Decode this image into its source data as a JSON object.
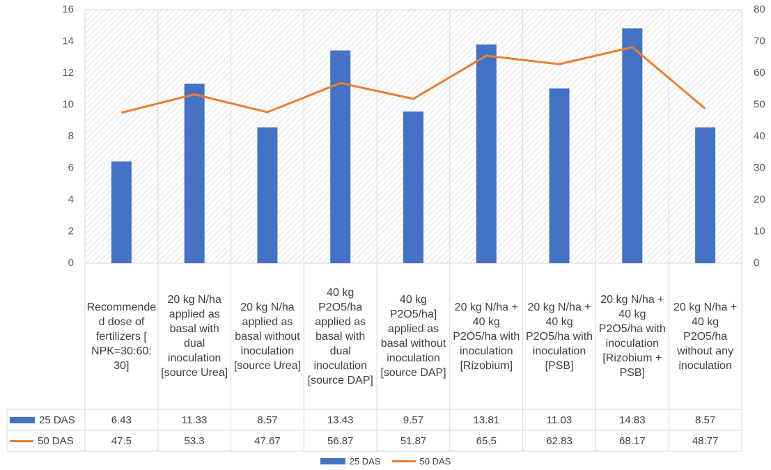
{
  "chart_data": {
    "type": "bar_line",
    "categories": [
      "Recommended dose of fertilizers [ NPK=30:60: 30]",
      "20 kg N/ha applied as basal with dual inoculation [source Urea]",
      "20 kg N/ha applied as basal without inoculation [source Urea]",
      "40 kg P2O5/ha applied as basal with dual inoculation [source DAP]",
      "40 kg P2O5/ha] applied as basal without inoculation [source DAP]",
      "20 kg N/ha + 40 kg P2O5/ha with inoculation [Rizobium]",
      "20 kg N/ha + 40 kg P2O5/ha with inoculation [PSB]",
      "20 kg N/ha + 40 kg P2O5/ha with inoculation [Rizobium + PSB]",
      "20 kg N/ha + 40 kg P2O5/ha without any inoculation"
    ],
    "series": [
      {
        "name": "25 DAS",
        "color": "#4472c4",
        "type": "bar",
        "values": [
          6.43,
          11.33,
          8.57,
          13.43,
          9.57,
          13.81,
          11.03,
          14.83,
          8.57
        ]
      },
      {
        "name": "50 DAS",
        "color": "#ed7d31",
        "type": "line",
        "axis": "y2",
        "values": [
          47.5,
          53.3,
          47.67,
          56.87,
          51.87,
          65.5,
          62.83,
          68.17,
          48.77
        ]
      }
    ],
    "ylim": [
      0,
      16
    ],
    "yticks": [
      0,
      2,
      4,
      6,
      8,
      10,
      12,
      14,
      16
    ],
    "y2lim": [
      0,
      80
    ],
    "y2ticks": [
      0,
      10,
      20,
      30,
      40,
      50,
      60,
      70,
      80
    ],
    "grid": false,
    "legend": "bottom"
  }
}
